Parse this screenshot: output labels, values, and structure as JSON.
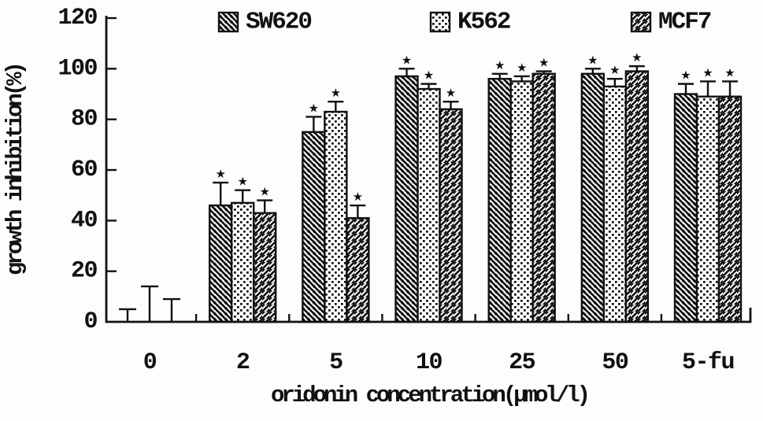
{
  "figure": {
    "background": "#fdfdfd",
    "ink": "#111111"
  },
  "chart_data": {
    "type": "bar",
    "title": "",
    "xlabel": "oridonin concentration(μmol/l)",
    "ylabel": "growth inhibition(%)",
    "categories": [
      "0",
      "2",
      "5",
      "10",
      "25",
      "50",
      "5-fu"
    ],
    "y_ticks": [
      0,
      20,
      40,
      60,
      80,
      100,
      120
    ],
    "ylim": [
      0,
      120
    ],
    "grid": false,
    "legend_position": "top",
    "significance_marker": "★",
    "series": [
      {
        "name": "SW620",
        "pattern": "diagonal-back-hatch",
        "values": [
          0,
          46,
          75,
          97,
          96,
          98,
          90
        ],
        "errors": [
          5,
          9,
          6,
          3,
          2,
          2,
          4
        ],
        "significant": [
          false,
          true,
          true,
          true,
          true,
          true,
          true
        ]
      },
      {
        "name": "K562",
        "pattern": "dot-grid",
        "values": [
          0,
          47,
          83,
          92,
          95,
          93,
          89
        ],
        "errors": [
          14,
          5,
          4,
          2,
          2,
          3,
          6
        ],
        "significant": [
          false,
          true,
          true,
          true,
          true,
          true,
          true
        ]
      },
      {
        "name": "MCF7",
        "pattern": "diagonal-forward-hatch",
        "values": [
          0,
          43,
          41,
          84,
          98,
          99,
          89
        ],
        "errors": [
          9,
          5,
          5,
          3,
          1,
          2,
          6
        ],
        "significant": [
          false,
          true,
          true,
          true,
          true,
          true,
          true
        ]
      }
    ]
  }
}
